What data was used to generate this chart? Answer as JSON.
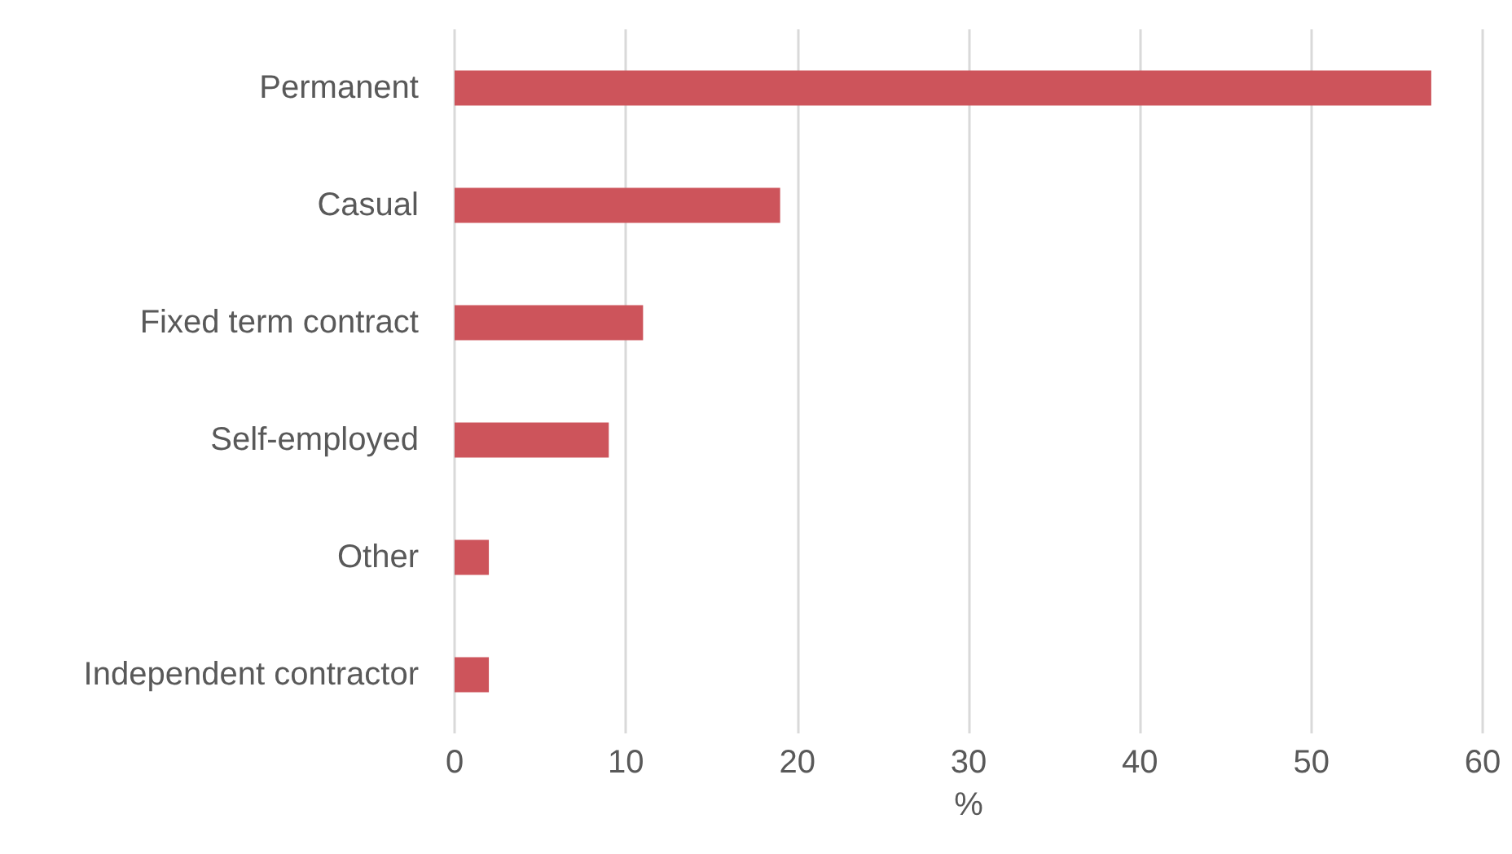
{
  "chart_data": {
    "type": "bar",
    "orientation": "horizontal",
    "xlabel": "%",
    "categories": [
      "Permanent",
      "Casual",
      "Fixed term contract",
      "Self-employed",
      "Other",
      "Independent contractor"
    ],
    "values": [
      57,
      19,
      11,
      9,
      2,
      2
    ],
    "color": "#cd545b",
    "xlim": [
      0,
      60
    ],
    "xticks": [
      0,
      10,
      20,
      30,
      40,
      50,
      60
    ],
    "grid": "x"
  }
}
